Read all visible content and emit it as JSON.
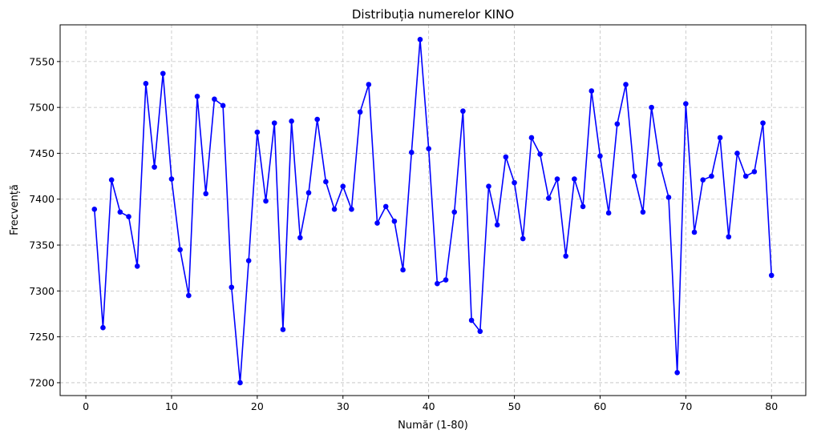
{
  "chart_data": {
    "type": "line",
    "title": "Distribuția numerelor KINO",
    "xlabel": "Număr (1-80)",
    "ylabel": "Frecvență",
    "xlim": [
      -3,
      84
    ],
    "ylim": [
      7186,
      7590
    ],
    "x_ticks": [
      0,
      10,
      20,
      30,
      40,
      50,
      60,
      70,
      80
    ],
    "y_ticks": [
      7200,
      7250,
      7300,
      7350,
      7400,
      7450,
      7500,
      7550
    ],
    "grid": true,
    "line_color": "#0000ff",
    "marker_color": "#0000ff",
    "series": [
      {
        "x": [
          1,
          2,
          3,
          4,
          5,
          6,
          7,
          8,
          9,
          10,
          11,
          12,
          13,
          14,
          15,
          16,
          17,
          18,
          19,
          20,
          21,
          22,
          23,
          24,
          25,
          26,
          27,
          28,
          29,
          30,
          31,
          32,
          33,
          34,
          35,
          36,
          37,
          38,
          39,
          40,
          41,
          42,
          43,
          44,
          45,
          46,
          47,
          48,
          49,
          50,
          51,
          52,
          53,
          54,
          55,
          56,
          57,
          58,
          59,
          60,
          61,
          62,
          63,
          64,
          65,
          66,
          67,
          68,
          69,
          70,
          71,
          72,
          73,
          74,
          75,
          76,
          77,
          78,
          79,
          80
        ],
        "values": [
          7389,
          7260,
          7421,
          7386,
          7381,
          7327,
          7526,
          7435,
          7537,
          7422,
          7345,
          7295,
          7512,
          7406,
          7509,
          7502,
          7304,
          7200,
          7333,
          7473,
          7398,
          7483,
          7258,
          7485,
          7358,
          7407,
          7487,
          7419,
          7389,
          7414,
          7389,
          7495,
          7525,
          7374,
          7392,
          7376,
          7323,
          7451,
          7574,
          7455,
          7308,
          7312,
          7386,
          7496,
          7268,
          7256,
          7414,
          7372,
          7446,
          7418,
          7357,
          7467,
          7449,
          7401,
          7422,
          7338,
          7422,
          7392,
          7518,
          7447,
          7385,
          7482,
          7525,
          7425,
          7386,
          7500,
          7438,
          7402,
          7211,
          7504,
          7364,
          7421,
          7425,
          7467,
          7359,
          7450,
          7425,
          7430,
          7483,
          7317
        ]
      }
    ]
  }
}
